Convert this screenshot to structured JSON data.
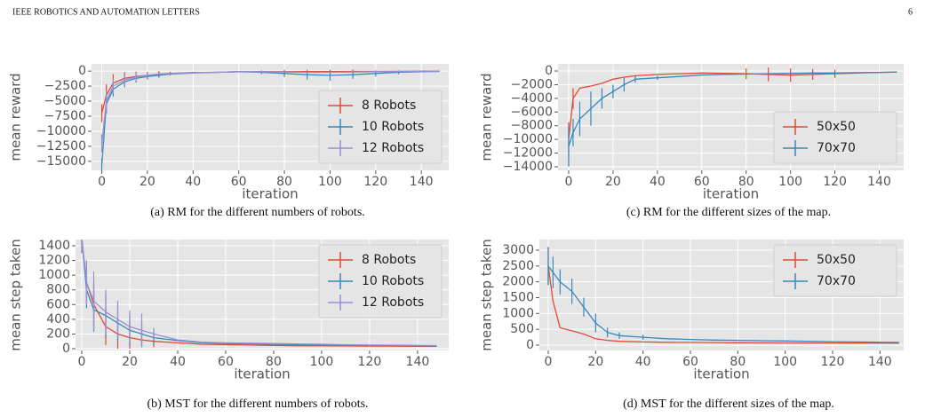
{
  "header": {
    "journal": "IEEE ROBOTICS AND AUTOMATION LETTERS",
    "page": "6"
  },
  "chart_data": [
    {
      "type": "line",
      "caption": "(a) RM for the different numbers of robots.",
      "xlabel": "iteration",
      "ylabel": "mean reward",
      "legend": "lower right",
      "grid": true,
      "x": [
        0,
        2,
        5,
        10,
        15,
        20,
        25,
        30,
        40,
        50,
        60,
        70,
        80,
        90,
        100,
        110,
        120,
        130,
        140,
        148
      ],
      "xlim": [
        -4.5,
        152
      ],
      "xticks": [
        0,
        20,
        40,
        60,
        80,
        100,
        120,
        140
      ],
      "ylim": [
        -16500,
        1200
      ],
      "yticks": [
        0,
        {
          "value": -2500,
          "label": "−2500"
        },
        {
          "value": -5000,
          "label": "−5000"
        },
        {
          "value": -7500,
          "label": "−7500"
        },
        {
          "value": -10000,
          "label": "−10000"
        },
        {
          "value": -12500,
          "label": "−12500"
        },
        {
          "value": -15000,
          "label": "−15000"
        }
      ],
      "series": [
        {
          "name": "8 Robots",
          "color": "#e24a33",
          "values": [
            -7000,
            -4000,
            -2000,
            -1200,
            -900,
            -700,
            -500,
            -400,
            -250,
            -200,
            -100,
            -100,
            -100,
            -80,
            -80,
            -60,
            -50,
            -40,
            -30,
            -20
          ],
          "errors": [
            1500,
            1800,
            1500,
            1000,
            800,
            600,
            500,
            300,
            null,
            null,
            null,
            null,
            null,
            null,
            300,
            300,
            null,
            null,
            null,
            null
          ]
        },
        {
          "name": "10 Robots",
          "color": "#348abd",
          "values": [
            -15500,
            -5500,
            -3000,
            -1800,
            -1200,
            -900,
            -700,
            -500,
            -300,
            -200,
            -100,
            -200,
            -400,
            -600,
            -700,
            -600,
            -400,
            -200,
            -100,
            -50
          ],
          "errors": [
            1000,
            1500,
            1200,
            900,
            700,
            500,
            400,
            null,
            null,
            null,
            null,
            300,
            600,
            800,
            900,
            700,
            500,
            300,
            null,
            null
          ]
        },
        {
          "name": "12 Robots",
          "color": "#988ed5",
          "values": [
            -12000,
            -5000,
            -2500,
            -1500,
            -1000,
            -700,
            -500,
            -400,
            -250,
            -200,
            -100,
            -100,
            -150,
            -200,
            -200,
            -150,
            -100,
            -80,
            -60,
            -40
          ],
          "errors": [
            1500,
            1800,
            1200,
            900,
            700,
            500,
            null,
            null,
            null,
            null,
            null,
            null,
            null,
            null,
            null,
            null,
            null,
            null,
            null,
            null
          ]
        }
      ]
    },
    {
      "type": "line",
      "caption": "(b) MST for the different numbers of robots.",
      "xlabel": "iteration",
      "ylabel": "mean step taken",
      "legend": "upper right",
      "grid": true,
      "x": [
        0,
        2,
        5,
        10,
        15,
        20,
        25,
        30,
        40,
        50,
        60,
        70,
        80,
        90,
        100,
        110,
        120,
        130,
        140,
        148
      ],
      "xlim": [
        -2.6,
        153
      ],
      "xticks": [
        0,
        20,
        40,
        60,
        80,
        100,
        120,
        140
      ],
      "ylim": [
        -24,
        1485
      ],
      "yticks": [
        0,
        200,
        400,
        600,
        800,
        1000,
        1200,
        1400
      ],
      "series": [
        {
          "name": "8 Robots",
          "color": "#e24a33",
          "values": [
            1500,
            900,
            600,
            300,
            200,
            150,
            120,
            100,
            80,
            60,
            55,
            50,
            45,
            40,
            40,
            38,
            35,
            35,
            33,
            32
          ],
          "errors": [
            200,
            300,
            300,
            250,
            200,
            150,
            100,
            80,
            null,
            null,
            null,
            null,
            null,
            null,
            null,
            null,
            null,
            null,
            null,
            null
          ]
        },
        {
          "name": "10 Robots",
          "color": "#348abd",
          "values": [
            1500,
            800,
            530,
            450,
            350,
            250,
            200,
            150,
            110,
            80,
            70,
            65,
            60,
            55,
            50,
            48,
            45,
            43,
            40,
            40
          ],
          "errors": [
            200,
            250,
            300,
            300,
            250,
            200,
            150,
            100,
            null,
            null,
            null,
            null,
            null,
            null,
            null,
            null,
            null,
            null,
            null,
            null
          ]
        },
        {
          "name": "12 Robots",
          "color": "#988ed5",
          "values": [
            1500,
            900,
            650,
            500,
            400,
            300,
            250,
            200,
            120,
            90,
            80,
            75,
            70,
            65,
            60,
            55,
            50,
            48,
            45,
            42
          ],
          "errors": [
            200,
            300,
            400,
            300,
            250,
            220,
            230,
            80,
            null,
            null,
            null,
            null,
            null,
            null,
            null,
            null,
            null,
            null,
            null,
            null
          ]
        }
      ]
    },
    {
      "type": "line",
      "caption": "(c) RM for the different sizes of the map.",
      "xlabel": "iteration",
      "ylabel": "mean reward",
      "legend": "lower right",
      "grid": true,
      "x": [
        0,
        2,
        5,
        10,
        15,
        20,
        25,
        30,
        40,
        50,
        60,
        70,
        80,
        90,
        100,
        110,
        120,
        130,
        140,
        148
      ],
      "xlim": [
        -4.8,
        151
      ],
      "xticks": [
        0,
        20,
        40,
        60,
        80,
        100,
        120,
        140
      ],
      "ylim": [
        -14520,
        1040
      ],
      "yticks": [
        0,
        {
          "value": -2000,
          "label": "−2000"
        },
        {
          "value": -4000,
          "label": "−4000"
        },
        {
          "value": -6000,
          "label": "−6000"
        },
        {
          "value": -8000,
          "label": "−8000"
        },
        {
          "value": -10000,
          "label": "−10000"
        },
        {
          "value": -12000,
          "label": "−12000"
        },
        {
          "value": -14000,
          "label": "−14000"
        }
      ],
      "series": [
        {
          "name": "50x50",
          "color": "#e24a33",
          "values": [
            -10000,
            -4000,
            -2500,
            -2200,
            -1800,
            -1200,
            -900,
            -700,
            -500,
            -400,
            -300,
            -350,
            -400,
            -500,
            -600,
            -500,
            -400,
            -300,
            -200,
            -150
          ],
          "errors": [
            2500,
            1500,
            null,
            null,
            null,
            null,
            null,
            null,
            null,
            null,
            null,
            null,
            800,
            1000,
            1000,
            800,
            600,
            null,
            null,
            null
          ]
        },
        {
          "name": "70x70",
          "color": "#348abd",
          "values": [
            -11000,
            -9000,
            -7000,
            -5500,
            -4000,
            -3000,
            -2000,
            -1200,
            -1000,
            -800,
            -600,
            -500,
            -450,
            -400,
            -350,
            -300,
            -300,
            -250,
            -200,
            -150
          ],
          "errors": [
            3000,
            2000,
            2500,
            2500,
            1500,
            1000,
            1000,
            500,
            300,
            null,
            null,
            null,
            null,
            null,
            null,
            null,
            null,
            null,
            null,
            null
          ]
        }
      ]
    },
    {
      "type": "line",
      "caption": "(d) MST for the different sizes of the map.",
      "xlabel": "iteration",
      "ylabel": "mean step taken",
      "legend": "upper right",
      "grid": true,
      "x": [
        0,
        2,
        5,
        10,
        15,
        20,
        25,
        30,
        40,
        50,
        60,
        70,
        80,
        90,
        100,
        110,
        120,
        130,
        140,
        148
      ],
      "xlim": [
        -3.75,
        150
      ],
      "xticks": [
        0,
        20,
        40,
        60,
        80,
        100,
        120,
        140
      ],
      "ylim": [
        -169,
        3337
      ],
      "yticks": [
        0,
        500,
        1000,
        1500,
        2000,
        2500,
        3000
      ],
      "series": [
        {
          "name": "50x50",
          "color": "#e24a33",
          "values": [
            2500,
            1400,
            550,
            450,
            350,
            200,
            150,
            120,
            100,
            90,
            85,
            80,
            75,
            72,
            70,
            68,
            66,
            65,
            63,
            60
          ],
          "errors": [
            600,
            null,
            null,
            null,
            null,
            null,
            null,
            null,
            null,
            null,
            null,
            null,
            null,
            null,
            null,
            null,
            null,
            null,
            null,
            null
          ]
        },
        {
          "name": "70x70",
          "color": "#348abd",
          "values": [
            2500,
            2300,
            2000,
            1700,
            1200,
            700,
            400,
            300,
            250,
            200,
            180,
            160,
            150,
            140,
            130,
            120,
            110,
            100,
            90,
            85
          ],
          "errors": [
            600,
            500,
            400,
            400,
            300,
            300,
            150,
            100,
            80,
            null,
            null,
            null,
            null,
            null,
            null,
            null,
            null,
            null,
            null,
            null
          ]
        }
      ]
    }
  ]
}
